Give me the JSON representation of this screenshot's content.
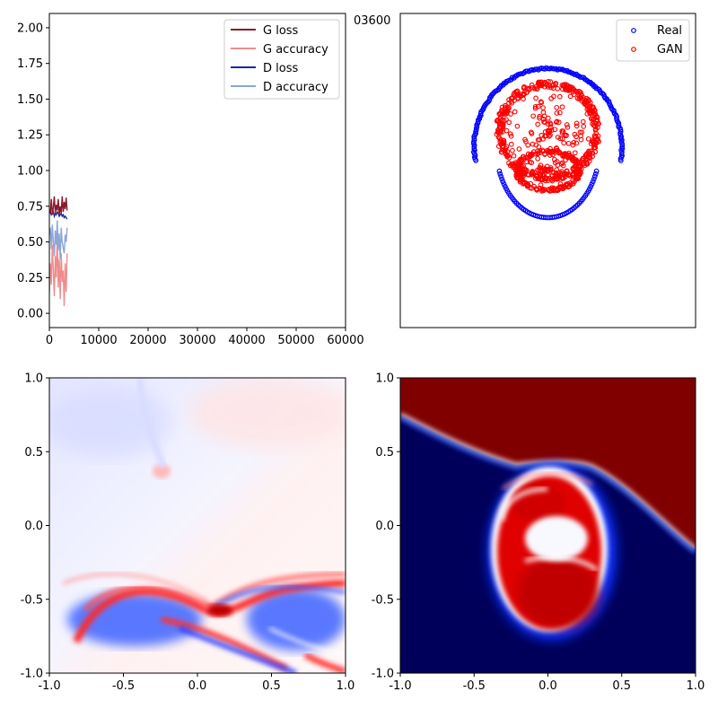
{
  "figure_label": "03600",
  "colors": {
    "g_loss": "#8b1a2b",
    "g_accuracy": "#f08c8c",
    "d_loss": "#1a2a9b",
    "d_accuracy": "#8ca6d8",
    "real": "#0000ff",
    "gan": "#ff0000"
  },
  "chart_data": [
    {
      "id": "training-curves",
      "type": "line",
      "title": "",
      "xlabel": "",
      "ylabel": "",
      "xlim": [
        0,
        60000
      ],
      "ylim": [
        -0.1,
        2.1
      ],
      "xticks": [
        0,
        10000,
        20000,
        30000,
        40000,
        50000,
        60000
      ],
      "xtick_labels": [
        "0",
        "10000",
        "20000",
        "30000",
        "40000",
        "50000",
        "60000"
      ],
      "yticks": [
        0.0,
        0.25,
        0.5,
        0.75,
        1.0,
        1.25,
        1.5,
        1.75,
        2.0
      ],
      "ytick_labels": [
        "0.00",
        "0.25",
        "0.50",
        "0.75",
        "1.00",
        "1.25",
        "1.50",
        "1.75",
        "2.00"
      ],
      "legend_position": "top-right",
      "series": [
        {
          "name": "G loss",
          "color_key": "g_loss",
          "x": [
            0,
            200,
            400,
            600,
            800,
            1000,
            1200,
            1400,
            1600,
            1800,
            2000,
            2200,
            2400,
            2600,
            2800,
            3000,
            3200,
            3400,
            3600
          ],
          "y": [
            0.72,
            0.7,
            0.8,
            0.69,
            0.74,
            0.82,
            0.7,
            0.76,
            0.72,
            0.8,
            0.69,
            0.75,
            0.7,
            0.82,
            0.71,
            0.78,
            0.73,
            0.81,
            0.72
          ]
        },
        {
          "name": "G accuracy",
          "color_key": "g_accuracy",
          "x": [
            0,
            200,
            400,
            600,
            800,
            1000,
            1200,
            1400,
            1600,
            1800,
            2000,
            2200,
            2400,
            2600,
            2800,
            3000,
            3200,
            3400,
            3600
          ],
          "y": [
            0.15,
            0.35,
            0.2,
            0.48,
            0.3,
            0.12,
            0.4,
            0.25,
            0.55,
            0.18,
            0.38,
            0.1,
            0.42,
            0.22,
            0.3,
            0.05,
            0.35,
            0.15,
            0.42
          ]
        },
        {
          "name": "D loss",
          "color_key": "d_loss",
          "x": [
            0,
            200,
            400,
            600,
            800,
            1000,
            1200,
            1400,
            1600,
            1800,
            2000,
            2200,
            2400,
            2600,
            2800,
            3000,
            3200,
            3400,
            3600
          ],
          "y": [
            0.7,
            0.71,
            0.69,
            0.7,
            0.71,
            0.68,
            0.7,
            0.69,
            0.71,
            0.7,
            0.68,
            0.69,
            0.7,
            0.68,
            0.69,
            0.67,
            0.68,
            0.67,
            0.66
          ]
        },
        {
          "name": "D accuracy",
          "color_key": "d_accuracy",
          "x": [
            0,
            200,
            400,
            600,
            800,
            1000,
            1200,
            1400,
            1600,
            1800,
            2000,
            2200,
            2400,
            2600,
            2800,
            3000,
            3200,
            3400,
            3600
          ],
          "y": [
            0.55,
            0.6,
            0.45,
            0.62,
            0.5,
            0.4,
            0.58,
            0.48,
            0.65,
            0.44,
            0.56,
            0.38,
            0.6,
            0.5,
            0.46,
            0.42,
            0.55,
            0.5,
            0.6
          ]
        }
      ]
    },
    {
      "id": "samples-scatter",
      "type": "scatter",
      "title": "",
      "xlim": [
        -1,
        1
      ],
      "ylim": [
        -1,
        1
      ],
      "axes_visible": false,
      "legend_position": "top-right",
      "series": [
        {
          "name": "Real",
          "color_key": "real",
          "marker": "hollow-circle",
          "description_shape": "arc",
          "arc": {
            "center": [
              0.0,
              0.15
            ],
            "radius": 0.5,
            "start_deg": -10,
            "end_deg": 190
          }
        },
        {
          "name": "GAN",
          "color_key": "gan",
          "marker": "hollow-circle",
          "clusters": [
            {
              "center": [
                0.0,
                0.25
              ],
              "radius": 0.33
            },
            {
              "center": [
                0.0,
                0.0
              ],
              "radius": 0.2
            }
          ]
        }
      ]
    },
    {
      "id": "heatmap-generator-field",
      "type": "heatmap",
      "xlim": [
        -1,
        1
      ],
      "ylim": [
        -1,
        1
      ],
      "xticks": [
        -1.0,
        -0.5,
        0.0,
        0.5,
        1.0
      ],
      "xtick_labels": [
        "-1.0",
        "-0.5",
        "0.0",
        "0.5",
        "1.0"
      ],
      "yticks": [
        -1.0,
        -0.5,
        0.0,
        0.5,
        1.0
      ],
      "ytick_labels": [
        "-1.0",
        "-0.5",
        "0.0",
        "0.5",
        "1.0"
      ],
      "colormap": "bwr"
    },
    {
      "id": "heatmap-discriminator",
      "type": "heatmap",
      "xlim": [
        -1,
        1
      ],
      "ylim": [
        -1,
        1
      ],
      "xticks": [
        -1.0,
        -0.5,
        0.0,
        0.5,
        1.0
      ],
      "xtick_labels": [
        "-1.0",
        "-0.5",
        "0.0",
        "0.5",
        "1.0"
      ],
      "yticks": [
        -1.0,
        -0.5,
        0.0,
        0.5,
        1.0
      ],
      "ytick_labels": [
        "-1.0",
        "-0.5",
        "0.0",
        "0.5",
        "1.0"
      ],
      "colormap": "seismic"
    }
  ]
}
